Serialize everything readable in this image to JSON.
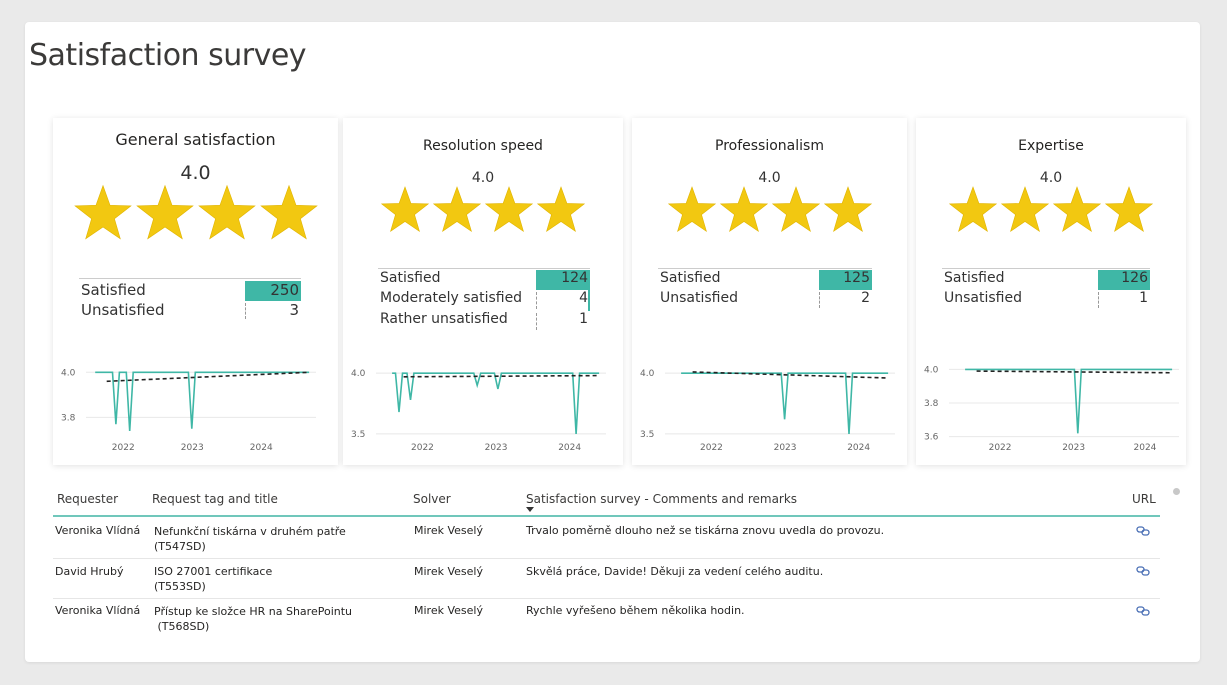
{
  "page": {
    "title": "Satisfaction survey"
  },
  "cards": [
    {
      "title": "General satisfaction",
      "rating": "4.0",
      "stars": 4,
      "breakdown": [
        {
          "label": "Satisfied",
          "value": "250",
          "count": 250
        },
        {
          "label": "Unsatisfied",
          "value": "3",
          "count": 3
        }
      ],
      "trend": {
        "y_ticks": [
          "4.0",
          "3.8"
        ],
        "x_ticks": [
          "2022",
          "2023",
          "2024"
        ],
        "ylim": [
          3.7,
          4.05
        ]
      }
    },
    {
      "title": "Resolution speed",
      "rating": "4.0",
      "stars": 4,
      "breakdown": [
        {
          "label": "Satisfied",
          "value": "124",
          "count": 124
        },
        {
          "label": "Moderately satisfied",
          "value": "4",
          "count": 4
        },
        {
          "label": "Rather unsatisfied",
          "value": "1",
          "count": 1
        }
      ],
      "trend": {
        "y_ticks": [
          "4.0",
          "3.5"
        ],
        "x_ticks": [
          "2022",
          "2023",
          "2024"
        ],
        "ylim": [
          3.45,
          4.1
        ]
      }
    },
    {
      "title": "Professionalism",
      "rating": "4.0",
      "stars": 4,
      "breakdown": [
        {
          "label": "Satisfied",
          "value": "125",
          "count": 125
        },
        {
          "label": "Unsatisfied",
          "value": "2",
          "count": 2
        }
      ],
      "trend": {
        "y_ticks": [
          "4.0",
          "3.5"
        ],
        "x_ticks": [
          "2022",
          "2023",
          "2024"
        ],
        "ylim": [
          3.45,
          4.1
        ]
      }
    },
    {
      "title": "Expertise",
      "rating": "4.0",
      "stars": 4,
      "breakdown": [
        {
          "label": "Satisfied",
          "value": "126",
          "count": 126
        },
        {
          "label": "Unsatisfied",
          "value": "1",
          "count": 1
        }
      ],
      "trend": {
        "y_ticks": [
          "4.0",
          "3.8",
          "3.6"
        ],
        "x_ticks": [
          "2022",
          "2023",
          "2024"
        ],
        "ylim": [
          3.58,
          4.05
        ]
      }
    }
  ],
  "table": {
    "headers": [
      "Requester",
      "Request tag and title",
      "Solver",
      "Satisfaction survey - Comments and remarks",
      "URL"
    ],
    "rows": [
      {
        "requester": "Veronika Vlídná",
        "title_line1": "Nefunkční tiskárna v druhém patře",
        "title_line2": "(T547SD)",
        "solver": "Mirek Veselý",
        "comment": "Trvalo poměrně dlouho než se tiskárna znovu uvedla do provozu.",
        "url_icon": "link-icon"
      },
      {
        "requester": "David Hrubý",
        "title_line1": "ISO 27001 certifikace",
        "title_line2": "(T553SD)",
        "solver": "Mirek Veselý",
        "comment": "Skvělá práce, Davide! Děkuji za vedení celého auditu.",
        "url_icon": "link-icon"
      },
      {
        "requester": "Veronika Vlídná",
        "title_line1": "Přístup ke složce HR na SharePointu",
        "title_line2": " (T568SD)",
        "solver": "Mirek Veselý",
        "comment": "Rychle vyřešeno během několika hodin.",
        "url_icon": "link-icon"
      }
    ]
  },
  "colors": {
    "star": "#f2c811",
    "star_stroke": "#e0b400",
    "bar": "#3fb7a6",
    "trend_line": "#3fb7a6",
    "trend_dashed": "#222222"
  }
}
